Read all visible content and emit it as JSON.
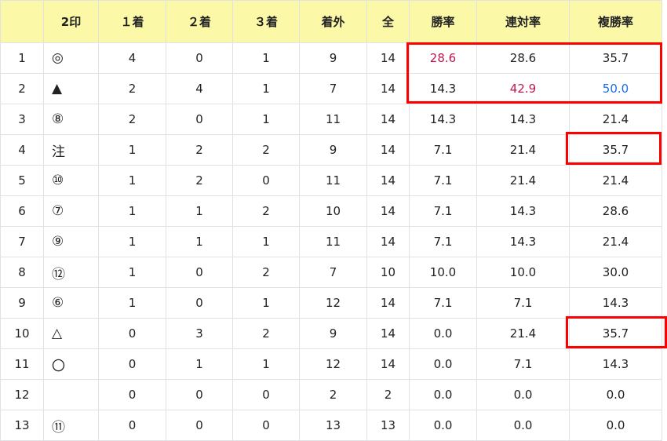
{
  "headers": [
    "",
    "2印",
    "１着",
    "２着",
    "３着",
    "着外",
    "全",
    "勝率",
    "連対率",
    "複勝率"
  ],
  "rows": [
    [
      "1",
      "◎",
      "4",
      "0",
      "1",
      "9",
      "14",
      "28.6",
      "28.6",
      "35.7"
    ],
    [
      "2",
      "▲",
      "2",
      "4",
      "1",
      "7",
      "14",
      "14.3",
      "42.9",
      "50.0"
    ],
    [
      "3",
      "⑧",
      "2",
      "0",
      "1",
      "11",
      "14",
      "14.3",
      "14.3",
      "21.4"
    ],
    [
      "4",
      "注",
      "1",
      "2",
      "2",
      "9",
      "14",
      "7.1",
      "21.4",
      "35.7"
    ],
    [
      "5",
      "⑩",
      "1",
      "2",
      "0",
      "11",
      "14",
      "7.1",
      "21.4",
      "21.4"
    ],
    [
      "6",
      "⑦",
      "1",
      "1",
      "2",
      "10",
      "14",
      "7.1",
      "14.3",
      "28.6"
    ],
    [
      "7",
      "⑨",
      "1",
      "1",
      "1",
      "11",
      "14",
      "7.1",
      "14.3",
      "21.4"
    ],
    [
      "8",
      "⑫",
      "1",
      "0",
      "2",
      "7",
      "10",
      "10.0",
      "10.0",
      "30.0"
    ],
    [
      "9",
      "⑥",
      "1",
      "0",
      "1",
      "12",
      "14",
      "7.1",
      "7.1",
      "14.3"
    ],
    [
      "10",
      "△",
      "0",
      "3",
      "2",
      "9",
      "14",
      "0.0",
      "21.4",
      "35.7"
    ],
    [
      "11",
      "〇",
      "0",
      "1",
      "1",
      "12",
      "14",
      "0.0",
      "7.1",
      "14.3"
    ],
    [
      "12",
      "",
      "0",
      "0",
      "0",
      "2",
      "2",
      "0.0",
      "0.0",
      "0.0"
    ],
    [
      "13",
      "⑪",
      "0",
      "0",
      "0",
      "13",
      "13",
      "0.0",
      "0.0",
      "0.0"
    ]
  ],
  "highlight_colors": {
    "top_red": "#c0174f",
    "top_blue": "#1a6fe8",
    "box": "#ff0000"
  }
}
